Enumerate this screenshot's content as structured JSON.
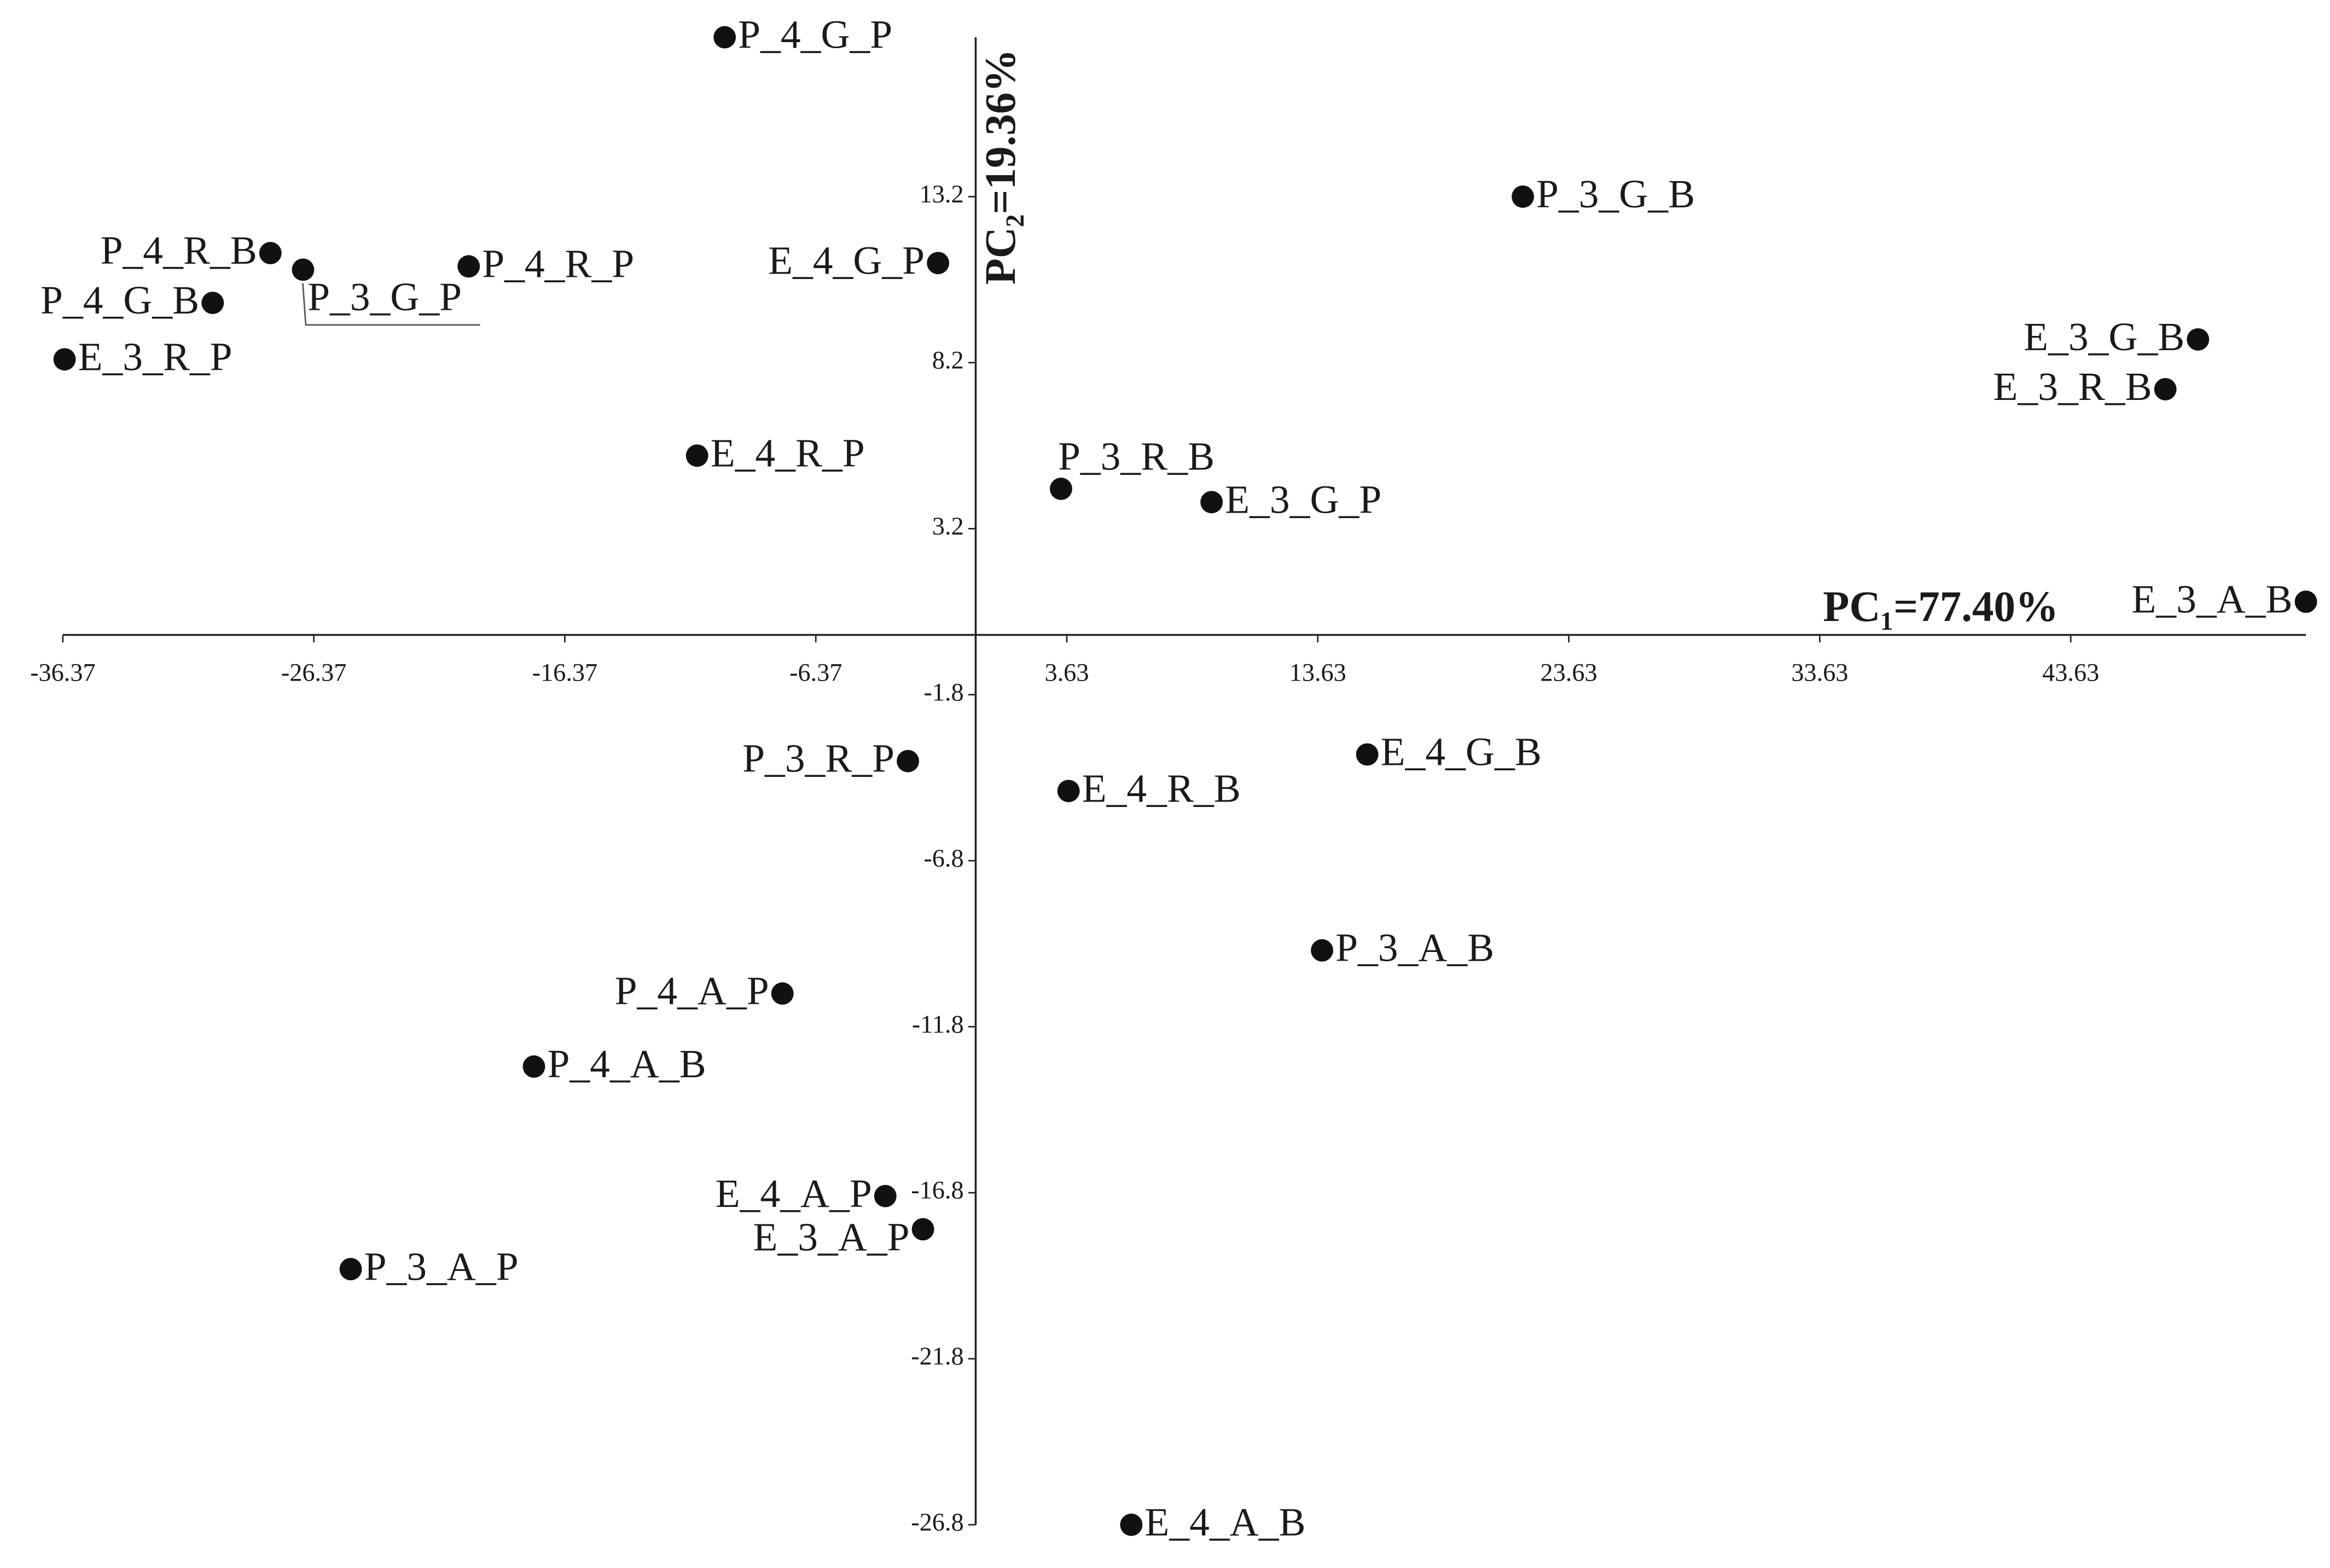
{
  "chart_data": {
    "type": "scatter",
    "x_label": "PC₁=77.40%",
    "y_label": "PC₂=19.36%",
    "color": "#111111",
    "labels": [
      "P_4_G_P",
      "P_3_G_B",
      "E_4_G_P",
      "P_4_R_B",
      "P_3_G_P",
      "P_4_R_P",
      "P_4_G_B",
      "E_3_R_P",
      "E_3_G_B",
      "E_3_R_B",
      "E_4_R_P",
      "P_3_R_B",
      "E_3_G_P",
      "E_3_A_B",
      "P_3_R_P",
      "E_4_G_B",
      "E_4_R_B",
      "P_3_A_B",
      "P_4_A_P",
      "P_4_A_B",
      "E_4_A_P",
      "E_3_A_P",
      "P_3_A_P",
      "E_4_A_B"
    ],
    "x": [
      -10.0,
      21.8,
      -1.5,
      -28.1,
      -26.8,
      -20.2,
      -30.4,
      -36.3,
      48.7,
      47.4,
      -11.1,
      3.4,
      9.4,
      53.0,
      -2.7,
      15.6,
      3.7,
      13.8,
      -7.7,
      -17.6,
      -3.6,
      -2.1,
      -24.9,
      6.2
    ],
    "values": [
      18.0,
      13.2,
      11.2,
      11.5,
      11.0,
      11.1,
      10.0,
      8.3,
      8.9,
      7.4,
      5.4,
      4.4,
      4.0,
      1.0,
      -3.8,
      -3.6,
      -4.7,
      -9.5,
      -10.8,
      -13.0,
      -16.9,
      -17.9,
      -19.1,
      -26.8
    ],
    "xlim": [
      -36.37,
      53.0
    ],
    "ylim": [
      -26.8,
      18.0
    ],
    "xticks": [
      -36.37,
      -26.37,
      -16.37,
      -6.37,
      3.63,
      13.63,
      23.63,
      33.63,
      43.63
    ],
    "yticks": [
      13.2,
      8.2,
      3.2,
      -1.8,
      -6.8,
      -11.8,
      -16.8,
      -21.8,
      -26.8
    ]
  }
}
